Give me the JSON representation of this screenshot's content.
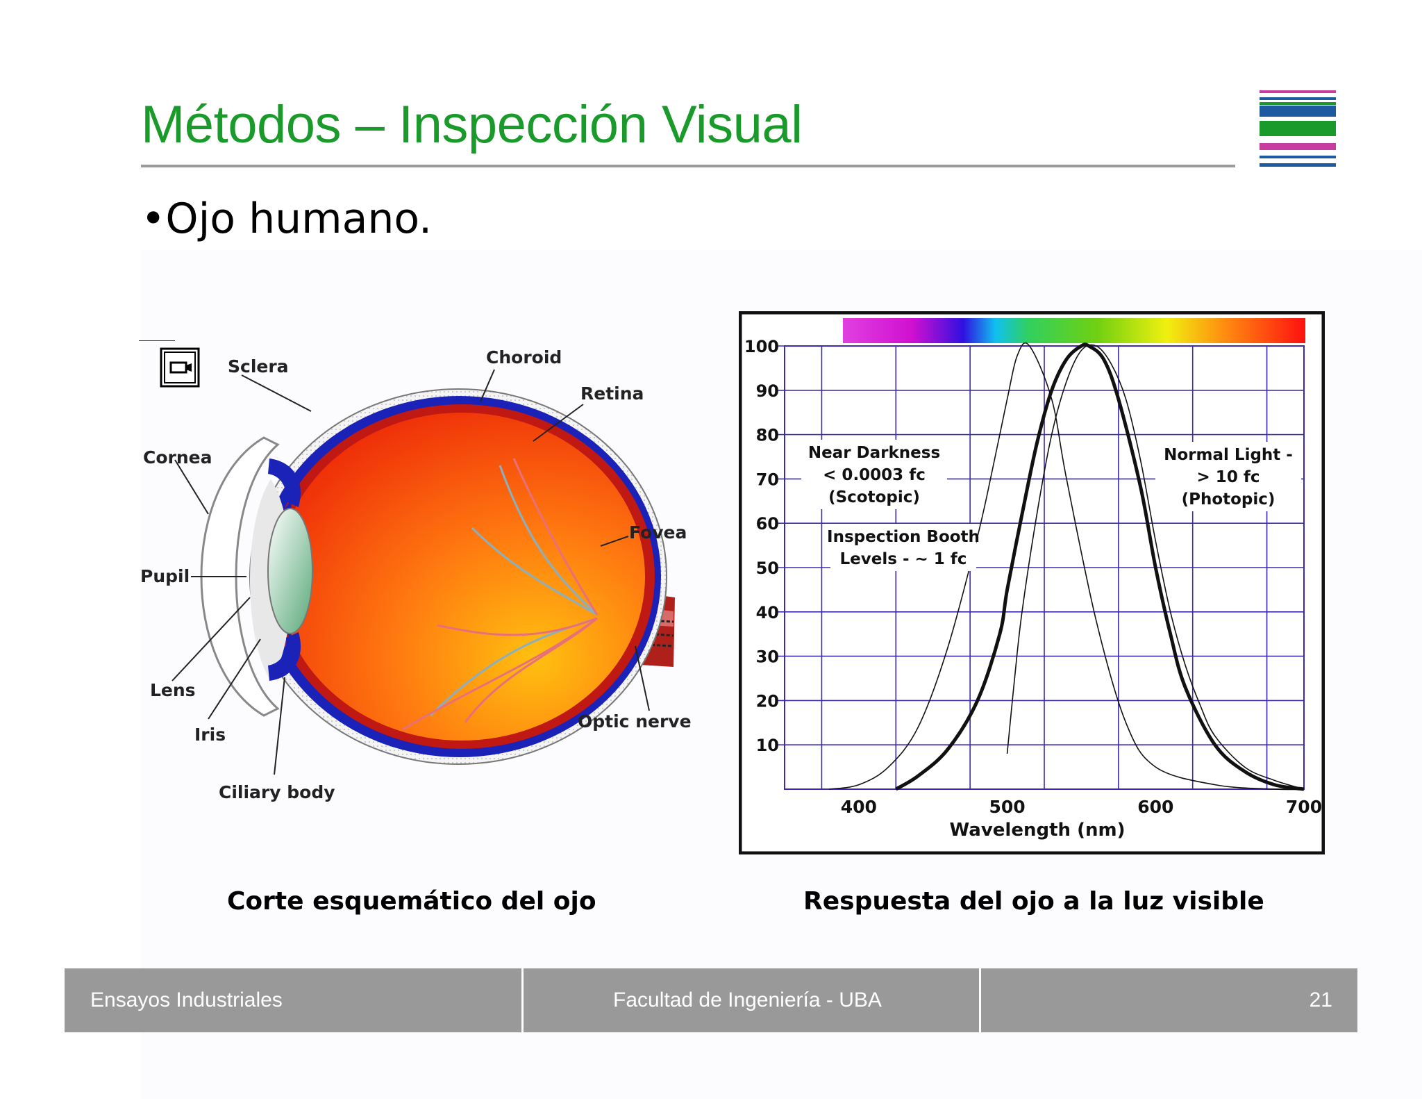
{
  "slide": {
    "title": "Métodos – Inspección Visual",
    "bullet": "•Ojo humano.",
    "left_caption": "Corte esquemático del ojo",
    "right_caption": "Respuesta del ojo a la luz visible"
  },
  "logo": {
    "stripe_colors": [
      "#c83ca0",
      "#1e5aa0",
      "#1a9a2a",
      "#1a9a2a",
      "#c83ca0",
      "#1e5aa0",
      "#1e5aa0"
    ]
  },
  "eye_diagram": {
    "labels": {
      "sclera": "Sclera",
      "choroid": "Choroid",
      "retina": "Retina",
      "cornea": "Cornea",
      "fovea": "Fovea",
      "pupil": "Pupil",
      "lens": "Lens",
      "iris": "Iris",
      "ciliary_body": "Ciliary body",
      "optic_nerve": "Optic nerve"
    },
    "icon": "film-camera-icon"
  },
  "chart_data": {
    "type": "line",
    "xlabel": "Wavelength (nm)",
    "x_ticks": [
      "400",
      "500",
      "600",
      "700"
    ],
    "y_ticks": [
      "10",
      "20",
      "30",
      "40",
      "50",
      "60",
      "70",
      "80",
      "90",
      "100"
    ],
    "xlim": [
      350,
      700
    ],
    "ylim": [
      0,
      100
    ],
    "grid": true,
    "spectrum_bar": true,
    "annotations": {
      "scotopic": [
        "Near Darkness",
        "< 0.0003 fc",
        "(Scotopic)"
      ],
      "booth": [
        "Inspection Booth",
        "Levels - ~ 1 fc"
      ],
      "photopic": [
        "Normal Light -",
        "> 10 fc",
        "(Photopic)"
      ]
    },
    "series": [
      {
        "style": "thin",
        "x": [
          380,
          400,
          420,
          440,
          460,
          480,
          490,
          500,
          507,
          515,
          530,
          540,
          560,
          580,
          600,
          640,
          680,
          700
        ],
        "y": [
          0,
          1,
          5,
          14,
          32,
          57,
          72,
          88,
          98,
          100,
          88,
          70,
          38,
          15,
          5,
          1,
          0,
          0
        ]
      },
      {
        "style": "thick",
        "x": [
          425,
          440,
          460,
          480,
          495,
          500,
          510,
          520,
          530,
          540,
          550,
          555,
          565,
          575,
          590,
          600,
          610,
          620,
          640,
          660,
          680,
          700
        ],
        "y": [
          0,
          3,
          9,
          20,
          35,
          45,
          62,
          78,
          90,
          97,
          100,
          100,
          97,
          88,
          68,
          50,
          35,
          23,
          10,
          4,
          1,
          0
        ]
      },
      {
        "style": "thin",
        "x": [
          500,
          505,
          510,
          520,
          530,
          540,
          550,
          560,
          570,
          580,
          590,
          600,
          610,
          620,
          630,
          640,
          660,
          680,
          700
        ],
        "y": [
          8,
          25,
          40,
          62,
          80,
          92,
          99,
          100,
          96,
          88,
          74,
          56,
          40,
          28,
          19,
          12,
          5,
          2,
          0
        ]
      }
    ]
  },
  "footer": {
    "left": "Ensayos Industriales",
    "center": "Facultad de Ingeniería - UBA",
    "page": "21"
  }
}
